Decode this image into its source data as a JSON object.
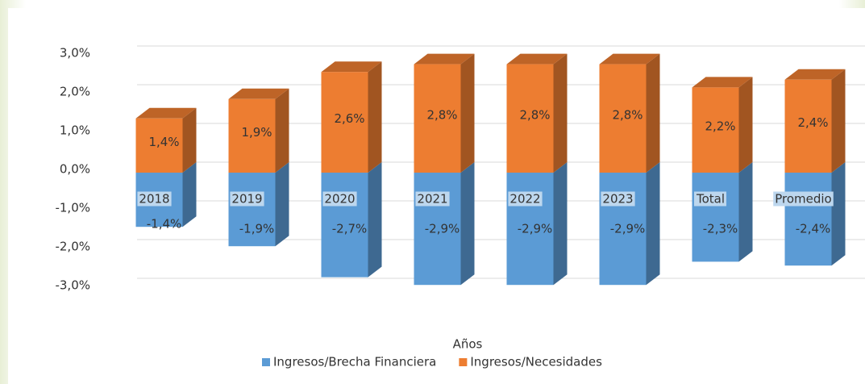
{
  "chart_data": {
    "type": "bar",
    "stacked": true,
    "x_label": "Años",
    "categories": [
      "2018",
      "2019",
      "2020",
      "2021",
      "2022",
      "2023",
      "Total",
      "Promedio"
    ],
    "series": [
      {
        "name": "Ingresos/Brecha Financiera",
        "color": "#5b9bd5",
        "values": [
          -1.4,
          -1.9,
          -2.7,
          -2.9,
          -2.9,
          -2.9,
          -2.3,
          -2.4
        ],
        "value_labels": [
          "-1,4%",
          "-1,9%",
          "-2,7%",
          "-2,9%",
          "-2,9%",
          "-2,9%",
          "-2,3%",
          "-2,4%"
        ]
      },
      {
        "name": "Ingresos/Necesidades",
        "color": "#ed7d31",
        "values": [
          1.4,
          1.9,
          2.6,
          2.8,
          2.8,
          2.8,
          2.2,
          2.4
        ],
        "value_labels": [
          "1,4%",
          "1,9%",
          "2,6%",
          "2,8%",
          "2,8%",
          "2,8%",
          "2,2%",
          "2,4%"
        ]
      }
    ],
    "ylim": [
      -3,
      3
    ],
    "yticks": [
      {
        "value": -3,
        "label": "-3,0%"
      },
      {
        "value": -2,
        "label": "-2,0%"
      },
      {
        "value": -1,
        "label": "-1,0%"
      },
      {
        "value": 0,
        "label": "0,0%"
      },
      {
        "value": 1,
        "label": "1,0%"
      },
      {
        "value": 2,
        "label": "2,0%"
      },
      {
        "value": 3,
        "label": "3,0%"
      }
    ],
    "grid": true,
    "legend": "bottom"
  }
}
